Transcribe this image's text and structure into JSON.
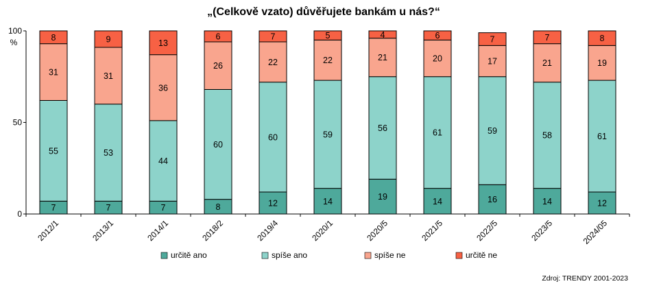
{
  "chart_data": {
    "type": "bar",
    "stacked": true,
    "title": "„(Celkově vzato) důvěřujete bankám u nás?“",
    "ylabel": "%",
    "ylim": [
      0,
      100
    ],
    "yticks": [
      "0",
      "50",
      "100"
    ],
    "categories": [
      "2012/1",
      "2013/1",
      "2014/1",
      "2018/2",
      "2019/4",
      "2020/1",
      "2020/5",
      "2021/5",
      "2022/5",
      "2023/5",
      "2024/05"
    ],
    "series": [
      {
        "name": "určitě ano",
        "color": "#4ea99b",
        "values": [
          7,
          7,
          7,
          8,
          12,
          14,
          19,
          14,
          16,
          14,
          12
        ]
      },
      {
        "name": "spíše ano",
        "color": "#8dd3ca",
        "values": [
          55,
          53,
          44,
          60,
          60,
          59,
          56,
          61,
          59,
          58,
          61
        ]
      },
      {
        "name": "spíše ne",
        "color": "#f9a58e",
        "values": [
          31,
          31,
          36,
          26,
          22,
          22,
          21,
          20,
          17,
          21,
          19
        ]
      },
      {
        "name": "určitě ne",
        "color": "#f76144",
        "values": [
          8,
          9,
          13,
          6,
          7,
          5,
          4,
          6,
          7,
          7,
          8
        ]
      }
    ],
    "legend_position": "bottom",
    "grid": false,
    "source": "Zdroj: TRENDY 2001-2023"
  }
}
